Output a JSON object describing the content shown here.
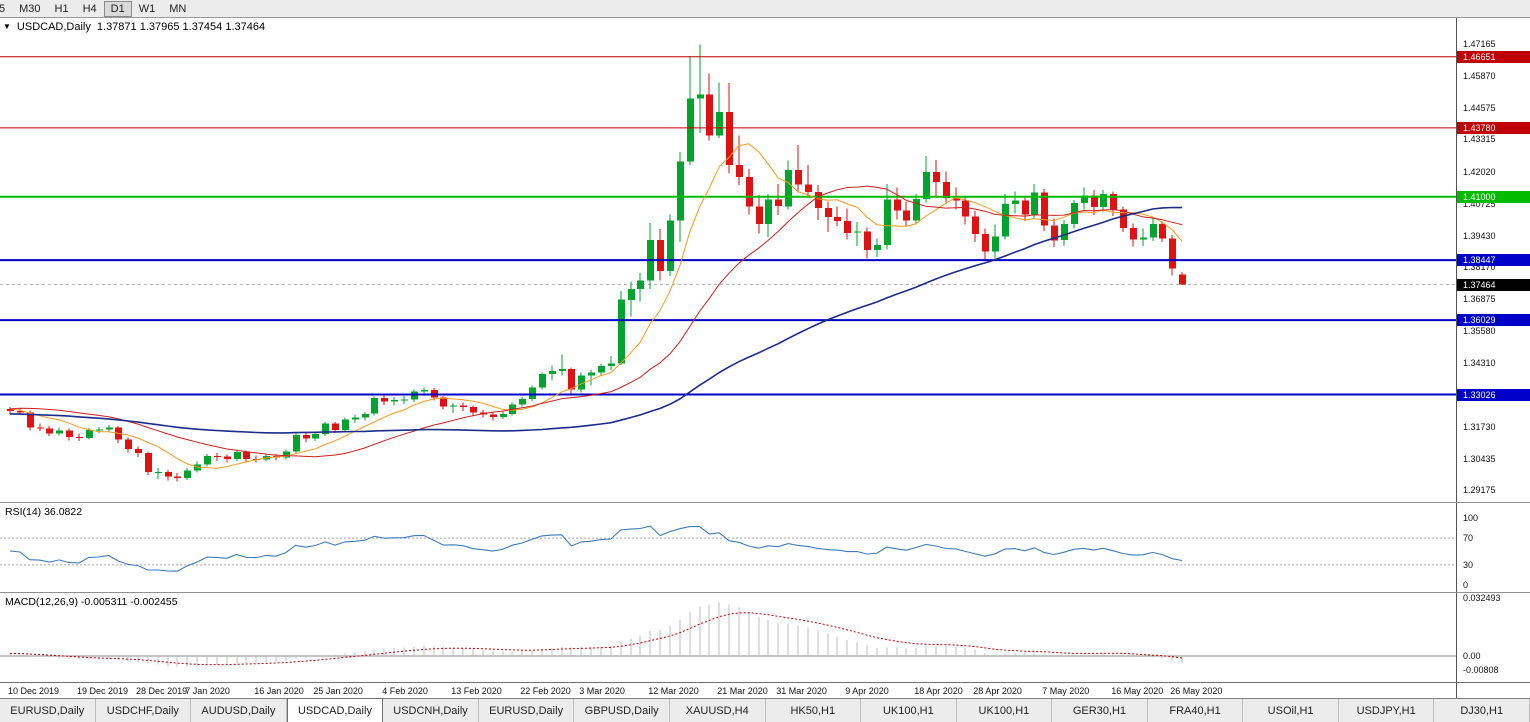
{
  "toolbar": {
    "items": [
      "5",
      "M30",
      "H1",
      "H4",
      "D1",
      "W1",
      "MN"
    ],
    "active": "D1"
  },
  "chart": {
    "symbol": "USDCAD,Daily",
    "ohlc_line": "1.37871 1.37965 1.37454 1.37464"
  },
  "price_scale": {
    "min": 1.29175,
    "max": 1.47165
  },
  "price_axis": {
    "ticks": [
      "1.47165",
      "1.45870",
      "1.44575",
      "1.43315",
      "1.42020",
      "1.40725",
      "1.39430",
      "1.38170",
      "1.36875",
      "1.35580",
      "1.34310",
      "1.33015",
      "1.31730",
      "1.30435",
      "1.29175"
    ]
  },
  "levels": [
    {
      "price": 1.46651,
      "label": "1.46651",
      "color": "#C00000",
      "width": 1
    },
    {
      "price": 1.4378,
      "label": "1.43780",
      "color": "#C00000",
      "width": 1
    },
    {
      "price": 1.41,
      "label": "1.41000",
      "color": "#00BB00",
      "width": 2
    },
    {
      "price": 1.38447,
      "label": "1.38447",
      "color": "#0000C8",
      "width": 2
    },
    {
      "price": 1.36029,
      "label": "1.36029",
      "color": "#0000C8",
      "width": 2
    },
    {
      "price": 1.33026,
      "label": "1.33026",
      "color": "#0000C8",
      "width": 2
    }
  ],
  "current_price": {
    "price": 1.37464,
    "label": "1.37464",
    "bg": "#000000"
  },
  "rsi_panel": {
    "label": "RSI(14) 36.0822",
    "value": "36.0822",
    "period": 14,
    "upper": 70,
    "lower": 30,
    "axis": [
      "100",
      "70",
      "30",
      "0"
    ],
    "color": "#3E7CB8"
  },
  "macd_panel": {
    "label": "MACD(12,26,9) -0.005311 -0.002455",
    "macd_value": "-0.005311",
    "signal_value": "-0.002455",
    "fast": 12,
    "slow": 26,
    "signal": 9,
    "axis": [
      "0.032493",
      "0.00",
      "-0.00808"
    ],
    "histogram_color": "#BDBDBD",
    "signal_color": "#C00000"
  },
  "time_axis": {
    "labels": [
      {
        "t": "10 Dec 2019",
        "i": 0
      },
      {
        "t": "19 Dec 2019",
        "i": 7
      },
      {
        "t": "28 Dec 2019",
        "i": 13
      },
      {
        "t": "7 Jan 2020",
        "i": 18
      },
      {
        "t": "16 Jan 2020",
        "i": 25
      },
      {
        "t": "25 Jan 2020",
        "i": 31
      },
      {
        "t": "4 Feb 2020",
        "i": 38
      },
      {
        "t": "13 Feb 2020",
        "i": 45
      },
      {
        "t": "22 Feb 2020",
        "i": 52
      },
      {
        "t": "3 Mar 2020",
        "i": 58
      },
      {
        "t": "12 Mar 2020",
        "i": 65
      },
      {
        "t": "21 Mar 2020",
        "i": 72
      },
      {
        "t": "31 Mar 2020",
        "i": 78
      },
      {
        "t": "9 Apr 2020",
        "i": 85
      },
      {
        "t": "18 Apr 2020",
        "i": 92
      },
      {
        "t": "28 Apr 2020",
        "i": 98
      },
      {
        "t": "7 May 2020",
        "i": 105
      },
      {
        "t": "16 May 2020",
        "i": 112
      },
      {
        "t": "26 May 2020",
        "i": 118
      }
    ]
  },
  "tabs": {
    "items": [
      "EURUSD,Daily",
      "USDCHF,Daily",
      "AUDUSD,Daily",
      "USDCAD,Daily",
      "USDCNH,Daily",
      "EURUSD,Daily",
      "GBPUSD,Daily",
      "XAUUSD,H4",
      "HK50,H1",
      "UK100,H1",
      "UK100,H1",
      "GER30,H1",
      "FRA40,H1",
      "USOil,H1",
      "USDJPY,H1",
      "DJ30,H1"
    ],
    "active_index": 3
  },
  "chart_data": {
    "type": "candlestick",
    "title": "USDCAD Daily",
    "up_color": "#00A32E",
    "down_color": "#DE1212",
    "ma": [
      {
        "period": 8,
        "color": "#F59A23",
        "width": 1
      },
      {
        "period": 21,
        "color": "#CC2020",
        "width": 1
      },
      {
        "period": 55,
        "color": "#1B2C8A",
        "width": 1.6
      }
    ],
    "pre_closes": [
      1.329,
      1.3268,
      1.3262,
      1.3285,
      1.3295,
      1.328,
      1.3265,
      1.3248,
      1.3252,
      1.324,
      1.3232,
      1.3248,
      1.3305,
      1.331,
      1.3298,
      1.3328,
      1.334,
      1.3322,
      1.331,
      1.3288,
      1.3275,
      1.3262,
      1.3248,
      1.3232,
      1.3218,
      1.3205,
      1.3192,
      1.3178,
      1.3162,
      1.3148,
      1.3135,
      1.3122,
      1.308,
      1.3065,
      1.3072,
      1.3092,
      1.311,
      1.3125,
      1.314,
      1.3158,
      1.3172,
      1.3185,
      1.3198,
      1.321,
      1.3222,
      1.3235,
      1.3248,
      1.326,
      1.3272,
      1.3285,
      1.3295,
      1.3305,
      1.3292,
      1.3278,
      1.3262,
      1.3245,
      1.3228,
      1.3212,
      1.324,
      1.3258
    ],
    "candles": [
      [
        1.3245,
        1.3252,
        1.3225,
        1.3237
      ],
      [
        1.3237,
        1.3248,
        1.3222,
        1.3231
      ],
      [
        1.3231,
        1.3238,
        1.3158,
        1.317
      ],
      [
        1.317,
        1.3185,
        1.3155,
        1.3166
      ],
      [
        1.3166,
        1.3175,
        1.3135,
        1.3146
      ],
      [
        1.3146,
        1.317,
        1.3138,
        1.3158
      ],
      [
        1.3158,
        1.3165,
        1.3118,
        1.3131
      ],
      [
        1.3131,
        1.3145,
        1.3115,
        1.3128
      ],
      [
        1.3128,
        1.3168,
        1.3122,
        1.3159
      ],
      [
        1.3159,
        1.3172,
        1.3148,
        1.3161
      ],
      [
        1.3161,
        1.318,
        1.3152,
        1.317
      ],
      [
        1.317,
        1.3176,
        1.3108,
        1.3121
      ],
      [
        1.3121,
        1.313,
        1.3068,
        1.3082
      ],
      [
        1.3082,
        1.3092,
        1.305,
        1.3066
      ],
      [
        1.3066,
        1.3072,
        1.2978,
        1.299
      ],
      [
        1.299,
        1.3006,
        1.2962,
        1.299
      ],
      [
        1.299,
        1.2998,
        1.2955,
        1.2972
      ],
      [
        1.2972,
        1.2986,
        1.2952,
        1.2966
      ],
      [
        1.2966,
        1.3006,
        1.2958,
        1.2996
      ],
      [
        1.2996,
        1.3032,
        1.2988,
        1.302
      ],
      [
        1.302,
        1.3062,
        1.3012,
        1.3055
      ],
      [
        1.3055,
        1.3066,
        1.3035,
        1.3052
      ],
      [
        1.3052,
        1.306,
        1.3028,
        1.3043
      ],
      [
        1.3043,
        1.3078,
        1.3035,
        1.307
      ],
      [
        1.307,
        1.3076,
        1.303,
        1.3042
      ],
      [
        1.3042,
        1.3056,
        1.3028,
        1.304
      ],
      [
        1.304,
        1.3062,
        1.3032,
        1.3055
      ],
      [
        1.3055,
        1.3062,
        1.3036,
        1.3048
      ],
      [
        1.3048,
        1.308,
        1.304,
        1.3073
      ],
      [
        1.3073,
        1.3148,
        1.3065,
        1.314
      ],
      [
        1.314,
        1.315,
        1.311,
        1.3125
      ],
      [
        1.3125,
        1.3152,
        1.3115,
        1.3143
      ],
      [
        1.3143,
        1.3192,
        1.3135,
        1.3185
      ],
      [
        1.3185,
        1.3192,
        1.3148,
        1.316
      ],
      [
        1.316,
        1.321,
        1.3152,
        1.3202
      ],
      [
        1.3202,
        1.3222,
        1.3188,
        1.321
      ],
      [
        1.321,
        1.3232,
        1.3198,
        1.3225
      ],
      [
        1.3225,
        1.3295,
        1.3218,
        1.3288
      ],
      [
        1.3288,
        1.3298,
        1.326,
        1.3275
      ],
      [
        1.3275,
        1.3292,
        1.3258,
        1.328
      ],
      [
        1.328,
        1.3296,
        1.3264,
        1.3282
      ],
      [
        1.3282,
        1.3322,
        1.3272,
        1.3315
      ],
      [
        1.3315,
        1.333,
        1.3296,
        1.332
      ],
      [
        1.332,
        1.3328,
        1.3278,
        1.329
      ],
      [
        1.329,
        1.3296,
        1.3242,
        1.3255
      ],
      [
        1.3255,
        1.3268,
        1.3228,
        1.3258
      ],
      [
        1.3258,
        1.327,
        1.3236,
        1.3252
      ],
      [
        1.3252,
        1.3258,
        1.3216,
        1.323
      ],
      [
        1.323,
        1.324,
        1.321,
        1.3222
      ],
      [
        1.3222,
        1.3232,
        1.3198,
        1.3212
      ],
      [
        1.3212,
        1.3236,
        1.3204,
        1.3225
      ],
      [
        1.3225,
        1.327,
        1.3218,
        1.3262
      ],
      [
        1.3262,
        1.3292,
        1.3254,
        1.3285
      ],
      [
        1.3285,
        1.334,
        1.3276,
        1.333
      ],
      [
        1.333,
        1.3392,
        1.3322,
        1.3385
      ],
      [
        1.3385,
        1.342,
        1.336,
        1.3398
      ],
      [
        1.3398,
        1.3465,
        1.338,
        1.3405
      ],
      [
        1.3405,
        1.3412,
        1.3302,
        1.3322
      ],
      [
        1.3322,
        1.3392,
        1.331,
        1.338
      ],
      [
        1.338,
        1.3402,
        1.334,
        1.3392
      ],
      [
        1.3392,
        1.3428,
        1.338,
        1.3418
      ],
      [
        1.3418,
        1.3458,
        1.3402,
        1.3428
      ],
      [
        1.3428,
        1.372,
        1.3422,
        1.3685
      ],
      [
        1.3685,
        1.3758,
        1.3618,
        1.3728
      ],
      [
        1.3728,
        1.3792,
        1.3678,
        1.3762
      ],
      [
        1.3762,
        1.3995,
        1.3728,
        1.3925
      ],
      [
        1.3925,
        1.397,
        1.3762,
        1.38
      ],
      [
        1.38,
        1.4028,
        1.378,
        1.4005
      ],
      [
        1.4005,
        1.428,
        1.3918,
        1.4242
      ],
      [
        1.4242,
        1.4668,
        1.4228,
        1.4496
      ],
      [
        1.4496,
        1.4715,
        1.4358,
        1.4513
      ],
      [
        1.4513,
        1.4598,
        1.4328,
        1.4348
      ],
      [
        1.4348,
        1.4562,
        1.4338,
        1.4442
      ],
      [
        1.4442,
        1.456,
        1.4195,
        1.4228
      ],
      [
        1.4228,
        1.4348,
        1.4148,
        1.418
      ],
      [
        1.418,
        1.4212,
        1.4028,
        1.4062
      ],
      [
        1.4062,
        1.4108,
        1.3952,
        1.399
      ],
      [
        1.399,
        1.4112,
        1.3938,
        1.409
      ],
      [
        1.409,
        1.4152,
        1.4026,
        1.4062
      ],
      [
        1.4062,
        1.4246,
        1.4048,
        1.4208
      ],
      [
        1.4208,
        1.431,
        1.4118,
        1.415
      ],
      [
        1.415,
        1.4228,
        1.4102,
        1.412
      ],
      [
        1.412,
        1.4148,
        1.4006,
        1.4055
      ],
      [
        1.4055,
        1.4082,
        1.3958,
        1.4018
      ],
      [
        1.4018,
        1.4062,
        1.3982,
        1.4002
      ],
      [
        1.4002,
        1.4052,
        1.3928,
        1.3955
      ],
      [
        1.3955,
        1.3998,
        1.3902,
        1.396
      ],
      [
        1.396,
        1.3976,
        1.3852,
        1.3885
      ],
      [
        1.3885,
        1.3932,
        1.3858,
        1.3905
      ],
      [
        1.3905,
        1.4152,
        1.3888,
        1.409
      ],
      [
        1.409,
        1.4138,
        1.4008,
        1.4045
      ],
      [
        1.4045,
        1.4082,
        1.3982,
        1.4005
      ],
      [
        1.4005,
        1.4112,
        1.3988,
        1.4092
      ],
      [
        1.4092,
        1.4265,
        1.4078,
        1.42
      ],
      [
        1.42,
        1.4248,
        1.4102,
        1.416
      ],
      [
        1.416,
        1.4202,
        1.4078,
        1.4095
      ],
      [
        1.4095,
        1.4138,
        1.4048,
        1.4085
      ],
      [
        1.4085,
        1.4098,
        1.3988,
        1.402
      ],
      [
        1.402,
        1.4042,
        1.3918,
        1.395
      ],
      [
        1.395,
        1.3972,
        1.3848,
        1.388
      ],
      [
        1.388,
        1.3988,
        1.3852,
        1.394
      ],
      [
        1.394,
        1.4112,
        1.3928,
        1.4072
      ],
      [
        1.4072,
        1.4122,
        1.4032,
        1.4085
      ],
      [
        1.4085,
        1.4098,
        1.4002,
        1.4028
      ],
      [
        1.4028,
        1.4152,
        1.4012,
        1.4118
      ],
      [
        1.4118,
        1.4132,
        1.3962,
        1.3985
      ],
      [
        1.3985,
        1.4012,
        1.3898,
        1.3925
      ],
      [
        1.3925,
        1.4006,
        1.3902,
        1.399
      ],
      [
        1.399,
        1.4088,
        1.3972,
        1.4075
      ],
      [
        1.4075,
        1.4138,
        1.4048,
        1.4105
      ],
      [
        1.4105,
        1.4128,
        1.4026,
        1.406
      ],
      [
        1.406,
        1.4128,
        1.404,
        1.4112
      ],
      [
        1.4112,
        1.4122,
        1.4022,
        1.4048
      ],
      [
        1.4048,
        1.4062,
        1.3958,
        1.3975
      ],
      [
        1.3975,
        1.3992,
        1.39,
        1.3928
      ],
      [
        1.3928,
        1.3972,
        1.3902,
        1.3935
      ],
      [
        1.3935,
        1.4012,
        1.3922,
        1.399
      ],
      [
        1.399,
        1.3999,
        1.3918,
        1.3932
      ],
      [
        1.3932,
        1.3946,
        1.3782,
        1.381
      ],
      [
        1.37871,
        1.37965,
        1.37454,
        1.37464
      ]
    ]
  }
}
